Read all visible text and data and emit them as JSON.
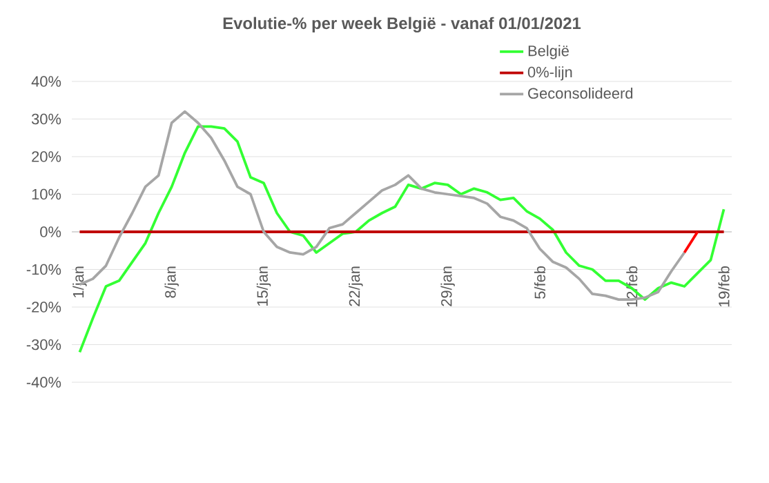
{
  "chart_data": {
    "type": "line",
    "title": "Evolutie-% per week België - vanaf 01/01/2021",
    "categories": [
      "1/jan",
      null,
      null,
      null,
      null,
      null,
      null,
      "8/jan",
      null,
      null,
      null,
      null,
      null,
      null,
      "15/jan",
      null,
      null,
      null,
      null,
      null,
      null,
      "22/jan",
      null,
      null,
      null,
      null,
      null,
      null,
      "29/jan",
      null,
      null,
      null,
      null,
      null,
      null,
      "5/feb",
      null,
      null,
      null,
      null,
      null,
      null,
      "12/feb",
      null,
      null,
      null,
      null,
      null,
      null,
      "19/feb"
    ],
    "series": [
      {
        "name": "België",
        "color": "#33ff33",
        "values": [
          -32,
          -23,
          -14.5,
          -13,
          -8,
          -3,
          5,
          12,
          21,
          28,
          28,
          27.5,
          24,
          14.5,
          13,
          5,
          0,
          -1,
          -5.5,
          -3,
          -0.5,
          0,
          3,
          5,
          6.7,
          12.5,
          11.5,
          13,
          12.5,
          10,
          11.5,
          10.5,
          8.5,
          9,
          5.5,
          3.5,
          0.5,
          -5.5,
          -9,
          -10,
          -13,
          -13,
          -15,
          -18,
          -15,
          -13.5,
          -14.5,
          -11,
          -7.5,
          6
        ]
      },
      {
        "name": "0%-lijn",
        "color": "#c00000",
        "values": [
          0,
          0,
          0,
          0,
          0,
          0,
          0,
          0,
          0,
          0,
          0,
          0,
          0,
          0,
          0,
          0,
          0,
          0,
          0,
          0,
          0,
          0,
          0,
          0,
          0,
          0,
          0,
          0,
          0,
          0,
          0,
          0,
          0,
          0,
          0,
          0,
          0,
          0,
          0,
          0,
          0,
          0,
          0,
          0,
          0,
          0,
          0,
          0,
          0,
          0
        ]
      },
      {
        "name": "Geconsolideerd",
        "color": "#a6a6a6",
        "values": [
          -14,
          -12.5,
          -9,
          -1.5,
          5,
          12,
          15,
          29,
          32,
          29,
          25,
          19,
          12,
          10,
          0,
          -4,
          -5.5,
          -6,
          -4,
          1,
          2,
          5,
          8,
          11,
          12.5,
          15,
          11.5,
          10.5,
          10,
          9.5,
          9,
          7.5,
          4,
          3,
          1,
          -4.5,
          -8,
          -9.5,
          -12.5,
          -16.5,
          -17,
          -18,
          -18,
          -17.5,
          -16,
          -10.5,
          -5.5,
          null,
          null,
          null
        ]
      },
      {
        "color": "#ff0000",
        "values": [
          null,
          null,
          null,
          null,
          null,
          null,
          null,
          null,
          null,
          null,
          null,
          null,
          null,
          null,
          null,
          null,
          null,
          null,
          null,
          null,
          null,
          null,
          null,
          null,
          null,
          null,
          null,
          null,
          null,
          null,
          null,
          null,
          null,
          null,
          null,
          null,
          null,
          null,
          null,
          null,
          null,
          null,
          null,
          null,
          null,
          null,
          -5.5,
          0,
          null,
          null
        ]
      }
    ],
    "ylim": [
      -40,
      40
    ],
    "yticks": [
      {
        "value": -40,
        "label": "-40%"
      },
      {
        "value": -30,
        "label": "-30%"
      },
      {
        "value": -20,
        "label": "-20%"
      },
      {
        "value": -10,
        "label": "-10%"
      },
      {
        "value": 0,
        "label": "0%"
      },
      {
        "value": 10,
        "label": "10%"
      },
      {
        "value": 20,
        "label": "20%"
      },
      {
        "value": 30,
        "label": "30%"
      },
      {
        "value": 40,
        "label": "40%"
      }
    ],
    "grid": "y",
    "legend": "top right"
  }
}
